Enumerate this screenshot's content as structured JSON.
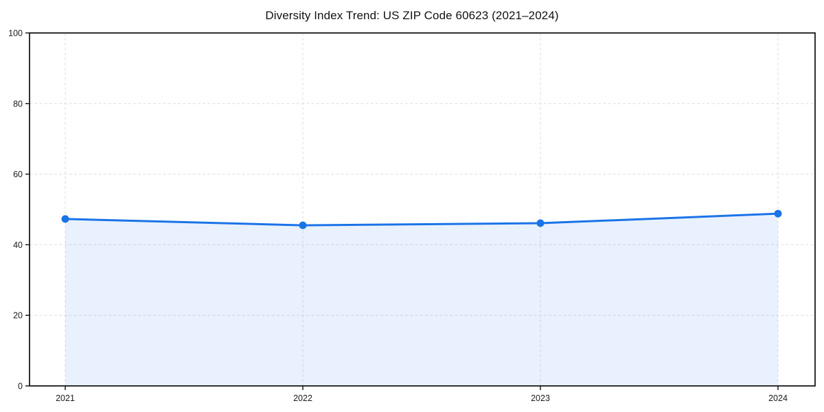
{
  "chart_data": {
    "type": "area",
    "title": "Diversity Index Trend: US ZIP Code 60623 (2021–2024)",
    "categories": [
      "2021",
      "2022",
      "2023",
      "2024"
    ],
    "series": [
      {
        "name": "Diversity Index",
        "values": [
          47.3,
          45.5,
          46.1,
          48.8
        ]
      }
    ],
    "xlabel": "",
    "ylabel": "",
    "ylim": [
      0,
      100
    ],
    "yticks": [
      0,
      20,
      40,
      60,
      80,
      100
    ],
    "grid": "dashed",
    "legend": "none",
    "colors": {
      "line": "#1a73e8",
      "marker": "#1a73e8",
      "fill": "#1a73e8",
      "fill_opacity": 0.1,
      "gridline": "#dedede",
      "spine": "#1a1a1a",
      "tick_label": "#1a1a1a",
      "background": "#ffffff"
    }
  }
}
